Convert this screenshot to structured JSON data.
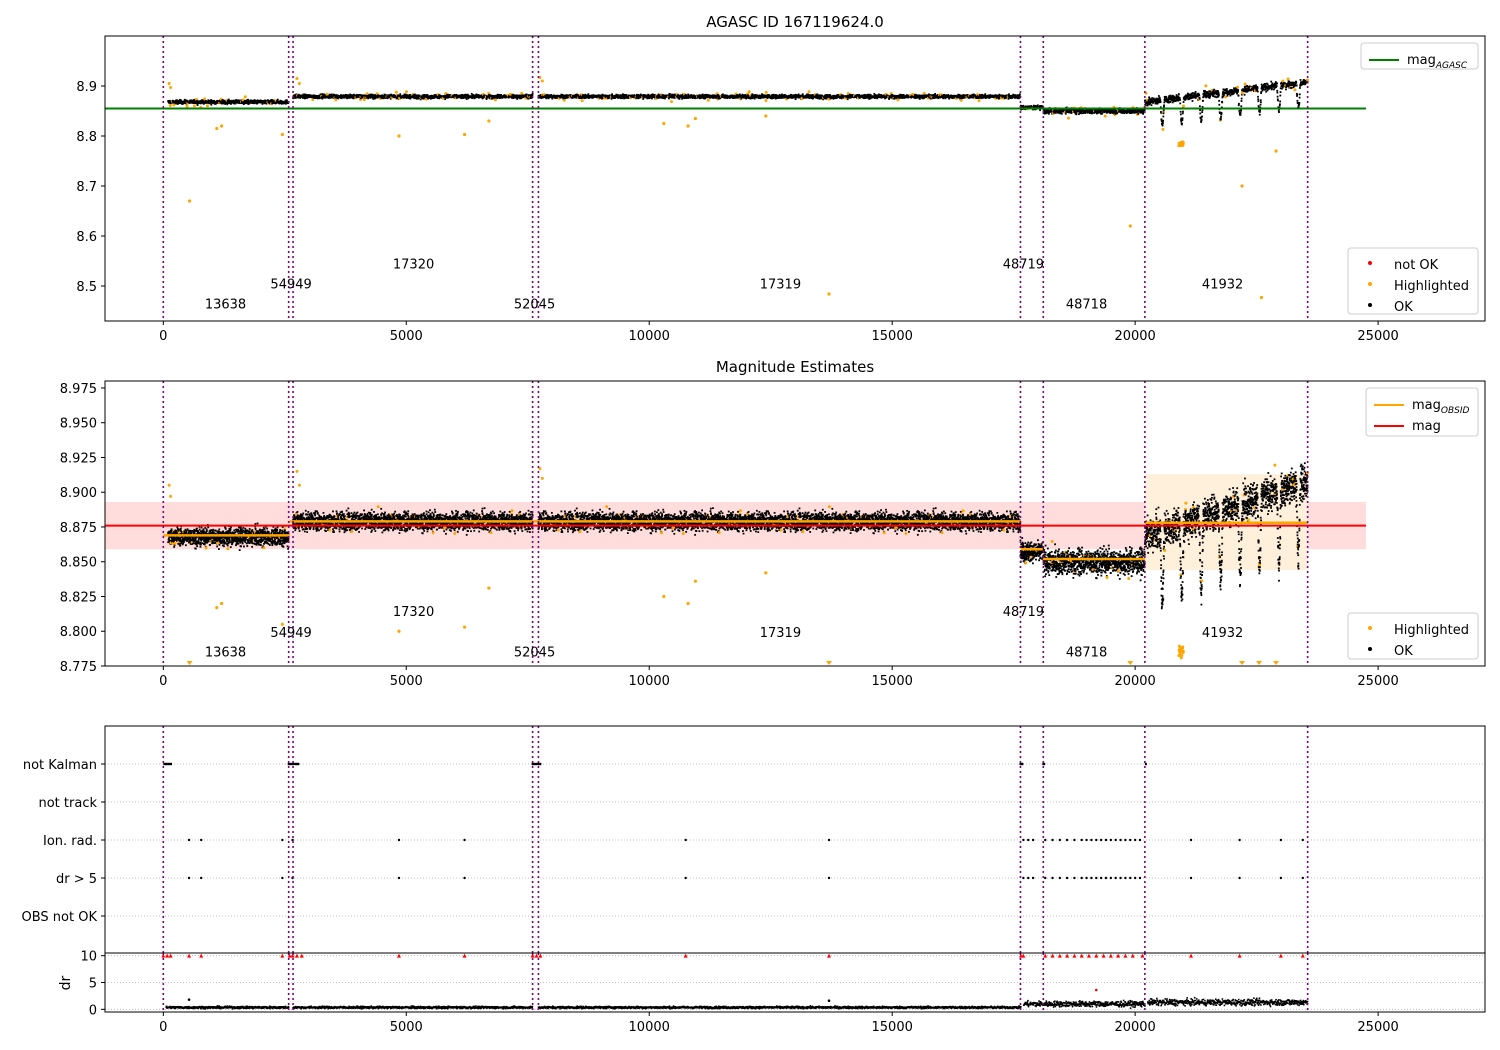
{
  "colors": {
    "ok": "#000000",
    "highlighted": "#ffa500",
    "not_ok": "#ff0000",
    "agasc_line": "#008000",
    "obsid_line": "#ffa500",
    "mag_line": "#ff0000",
    "obsid_boundary": "#800080",
    "band_red": "#ffdddd",
    "band_orange": "#fff0dc",
    "grid": "#b0b0b0"
  },
  "chart_data": [
    {
      "type": "scatter",
      "title": "AGASC ID 167119624.0",
      "xlim": [
        -1200,
        27200
      ],
      "ylim": [
        8.43,
        9.0
      ],
      "xticks": [
        0,
        5000,
        10000,
        15000,
        20000,
        25000
      ],
      "yticks": [
        8.5,
        8.6,
        8.7,
        8.8,
        8.9
      ],
      "ytick_labels": [
        "8.5",
        "8.6",
        "8.7",
        "8.8",
        "8.9"
      ],
      "hline": {
        "name": "mag_AGASC",
        "value": 8.855,
        "x_range": [
          -1200,
          24750
        ]
      },
      "legends": [
        {
          "position": "top-right",
          "entries": [
            {
              "label": "mag",
              "sub": "AGASC",
              "kind": "line",
              "color": "agasc_line"
            }
          ]
        },
        {
          "position": "bottom-right",
          "entries": [
            {
              "label": "not OK",
              "kind": "dot",
              "color": "not_ok"
            },
            {
              "label": "Highlighted",
              "kind": "dot",
              "color": "highlighted"
            },
            {
              "label": "OK",
              "kind": "dot",
              "color": "ok"
            }
          ]
        }
      ],
      "obsid_labels": [
        {
          "text": "13638",
          "x": 1280,
          "y": 8.455
        },
        {
          "text": "54949",
          "x": 2630,
          "y": 8.495
        },
        {
          "text": "17320",
          "x": 5150,
          "y": 8.535
        },
        {
          "text": "52045",
          "x": 7640,
          "y": 8.455
        },
        {
          "text": "17319",
          "x": 12700,
          "y": 8.495
        },
        {
          "text": "48719",
          "x": 17700,
          "y": 8.535
        },
        {
          "text": "48718",
          "x": 19000,
          "y": 8.455
        },
        {
          "text": "41932",
          "x": 21800,
          "y": 8.495
        }
      ],
      "highlight_outliers": [
        [
          540,
          8.67
        ],
        [
          1100,
          8.815
        ],
        [
          1200,
          8.82
        ],
        [
          2450,
          8.803
        ],
        [
          4850,
          8.8
        ],
        [
          6200,
          8.803
        ],
        [
          6700,
          8.83
        ],
        [
          10300,
          8.825
        ],
        [
          10800,
          8.82
        ],
        [
          10950,
          8.835
        ],
        [
          12400,
          8.84
        ],
        [
          13700,
          8.484
        ],
        [
          19900,
          8.62
        ],
        [
          22200,
          8.7
        ],
        [
          22600,
          8.477
        ],
        [
          22900,
          8.77
        ]
      ]
    },
    {
      "type": "scatter",
      "title": "Magnitude Estimates",
      "xlim": [
        -1200,
        27200
      ],
      "ylim": [
        8.775,
        8.98
      ],
      "xticks": [
        0,
        5000,
        10000,
        15000,
        20000,
        25000
      ],
      "yticks": [
        8.775,
        8.8,
        8.825,
        8.85,
        8.875,
        8.9,
        8.925,
        8.95,
        8.975
      ],
      "ytick_labels": [
        "8.775",
        "8.800",
        "8.825",
        "8.850",
        "8.875",
        "8.900",
        "8.925",
        "8.950",
        "8.975"
      ],
      "mag": {
        "value": 8.876,
        "band": [
          8.859,
          8.893
        ],
        "x_range": [
          -1200,
          24750
        ]
      },
      "obsid_mag": [
        {
          "start": 0,
          "end": 2600,
          "value": 8.869
        },
        {
          "start": 2600,
          "end": 7700,
          "value": 8.879
        },
        {
          "start": 7700,
          "end": 17650,
          "value": 8.879
        },
        {
          "start": 17650,
          "end": 18100,
          "value": 8.859
        },
        {
          "start": 18100,
          "end": 20200,
          "value": 8.852
        },
        {
          "start": 20200,
          "end": 23550,
          "value": 8.878,
          "band": [
            8.844,
            8.913
          ]
        }
      ],
      "legends": [
        {
          "position": "top-right",
          "entries": [
            {
              "label": "mag",
              "sub": "OBSID",
              "kind": "line",
              "color": "obsid_line"
            },
            {
              "label": "mag",
              "kind": "line",
              "color": "mag_line"
            }
          ]
        },
        {
          "position": "bottom-right",
          "entries": [
            {
              "label": "Highlighted",
              "kind": "dot",
              "color": "highlighted"
            },
            {
              "label": "OK",
              "kind": "dot",
              "color": "ok"
            }
          ]
        }
      ],
      "obsid_labels": [
        {
          "text": "13638",
          "x": 1280,
          "y": 8.782
        },
        {
          "text": "54949",
          "x": 2630,
          "y": 8.796
        },
        {
          "text": "17320",
          "x": 5150,
          "y": 8.811
        },
        {
          "text": "52045",
          "x": 7640,
          "y": 8.782
        },
        {
          "text": "17319",
          "x": 12700,
          "y": 8.796
        },
        {
          "text": "48719",
          "x": 17700,
          "y": 8.811
        },
        {
          "text": "48718",
          "x": 19000,
          "y": 8.782
        },
        {
          "text": "41932",
          "x": 21800,
          "y": 8.796
        }
      ],
      "clipped_markers_x": [
        540,
        13700,
        19900,
        22200,
        22550,
        22900
      ],
      "highlight_outliers": [
        [
          1100,
          8.817
        ],
        [
          1200,
          8.82
        ],
        [
          2450,
          8.805
        ],
        [
          4850,
          8.8
        ],
        [
          6200,
          8.803
        ],
        [
          6700,
          8.831
        ],
        [
          10300,
          8.825
        ],
        [
          10800,
          8.82
        ],
        [
          10950,
          8.836
        ],
        [
          12400,
          8.842
        ]
      ]
    },
    {
      "type": "scatter",
      "title": "",
      "xlim": [
        -1200,
        27200
      ],
      "categories": [
        "not Kalman",
        "not track",
        "Ion. rad.",
        "dr > 5",
        "OBS not OK"
      ],
      "points": {
        "not Kalman": [
          [
            0,
            180,
            1
          ],
          [
            2560,
            2800,
            1
          ],
          [
            7580,
            7780,
            1
          ],
          [
            17620,
            17700,
            1
          ],
          [
            18090,
            18150,
            1
          ],
          [
            20200,
            20230,
            1
          ]
        ],
        "not track": [],
        "Ion. rad.": [
          [
            530,
            0,
            0
          ],
          [
            780,
            0,
            0
          ],
          [
            2450,
            0,
            0
          ],
          [
            2660,
            0,
            0
          ],
          [
            4850,
            0,
            0
          ],
          [
            6200,
            0,
            0
          ],
          [
            10750,
            0,
            0
          ],
          [
            13700,
            0,
            0
          ],
          [
            17700,
            17900,
            3
          ],
          [
            18150,
            18900,
            6
          ],
          [
            19000,
            20100,
            12
          ],
          [
            21150,
            0,
            0
          ],
          [
            22150,
            0,
            0
          ],
          [
            23000,
            0,
            0
          ],
          [
            23450,
            0,
            0
          ]
        ],
        "dr > 5": [
          [
            530,
            0,
            0
          ],
          [
            780,
            0,
            0
          ],
          [
            2450,
            0,
            0
          ],
          [
            2660,
            0,
            0
          ],
          [
            4850,
            0,
            0
          ],
          [
            6200,
            0,
            0
          ],
          [
            10750,
            0,
            0
          ],
          [
            13700,
            0,
            0
          ],
          [
            17700,
            17900,
            3
          ],
          [
            18150,
            18900,
            6
          ],
          [
            19000,
            20100,
            12
          ],
          [
            21150,
            0,
            0
          ],
          [
            22150,
            0,
            0
          ],
          [
            23000,
            0,
            0
          ],
          [
            23450,
            0,
            0
          ]
        ],
        "OBS not OK": []
      }
    },
    {
      "type": "scatter",
      "ylabel": "dr",
      "xlim": [
        -1200,
        27200
      ],
      "ylim": [
        -0.5,
        10.5
      ],
      "yticks": [
        0,
        5,
        10
      ],
      "ytick_labels": [
        "0",
        "5",
        "10"
      ],
      "xticks": [
        0,
        5000,
        10000,
        15000,
        20000,
        25000
      ],
      "xtick_labels": [
        "0",
        "5000",
        "10000",
        "15000",
        "20000",
        "25000"
      ],
      "dr_baseline": [
        {
          "start": 0,
          "end": 17650,
          "mean": 0.35,
          "spread": 0.35
        },
        {
          "start": 17650,
          "end": 20200,
          "mean": 1.0,
          "spread": 0.9
        },
        {
          "start": 20200,
          "end": 23550,
          "mean": 1.3,
          "spread": 1.0
        }
      ],
      "capped_points_x": [
        0,
        80,
        150,
        530,
        780,
        2450,
        2600,
        2660,
        2750,
        2850,
        4850,
        6200,
        7600,
        7680,
        7760,
        10750,
        13700,
        17650,
        17700,
        18150,
        18300,
        18450,
        18600,
        18750,
        18900,
        19050,
        19200,
        19350,
        19500,
        19650,
        19800,
        19950,
        20150,
        21150,
        22150,
        23000,
        23450
      ],
      "outliers": [
        [
          530,
          1.8
        ],
        [
          13700,
          1.6
        ],
        [
          19200,
          3.6
        ]
      ]
    }
  ],
  "obsid_boundaries": [
    0,
    2580,
    2670,
    7600,
    7720,
    17640,
    18110,
    20200,
    23550
  ]
}
